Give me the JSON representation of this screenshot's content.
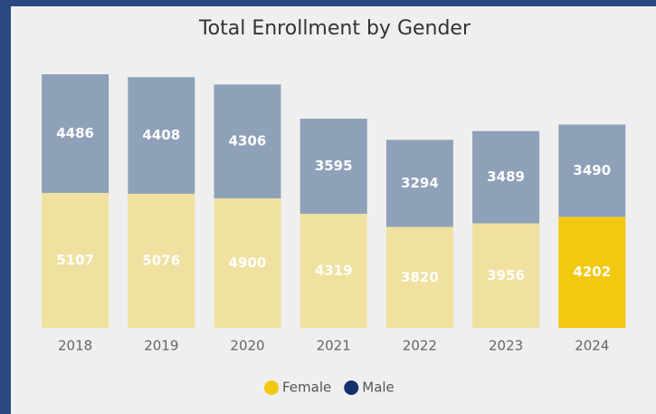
{
  "chart_data": {
    "type": "stacked_bar",
    "title": "Total Enrollment by Gender",
    "categories": [
      "2018",
      "2019",
      "2020",
      "2021",
      "2022",
      "2023",
      "2024"
    ],
    "series": [
      {
        "name": "Female",
        "color": "#f2c811",
        "bar_colors": [
          "#f0e1a0",
          "#f0e1a0",
          "#f0e1a0",
          "#f0e1a0",
          "#f0e1a0",
          "#f0e1a0",
          "#f2c811"
        ],
        "values": [
          5107,
          5076,
          4900,
          4319,
          3820,
          3956,
          4202
        ]
      },
      {
        "name": "Male",
        "color": "#14306b",
        "bar_colors": [
          "#8fa0b9",
          "#8fa0b9",
          "#8fa0b9",
          "#8fa0b9",
          "#8fa0b9",
          "#8fa0b9",
          "#8fa0b9"
        ],
        "values": [
          4486,
          4408,
          4306,
          3595,
          3294,
          3489,
          3490
        ]
      }
    ],
    "legend": "bottom"
  }
}
